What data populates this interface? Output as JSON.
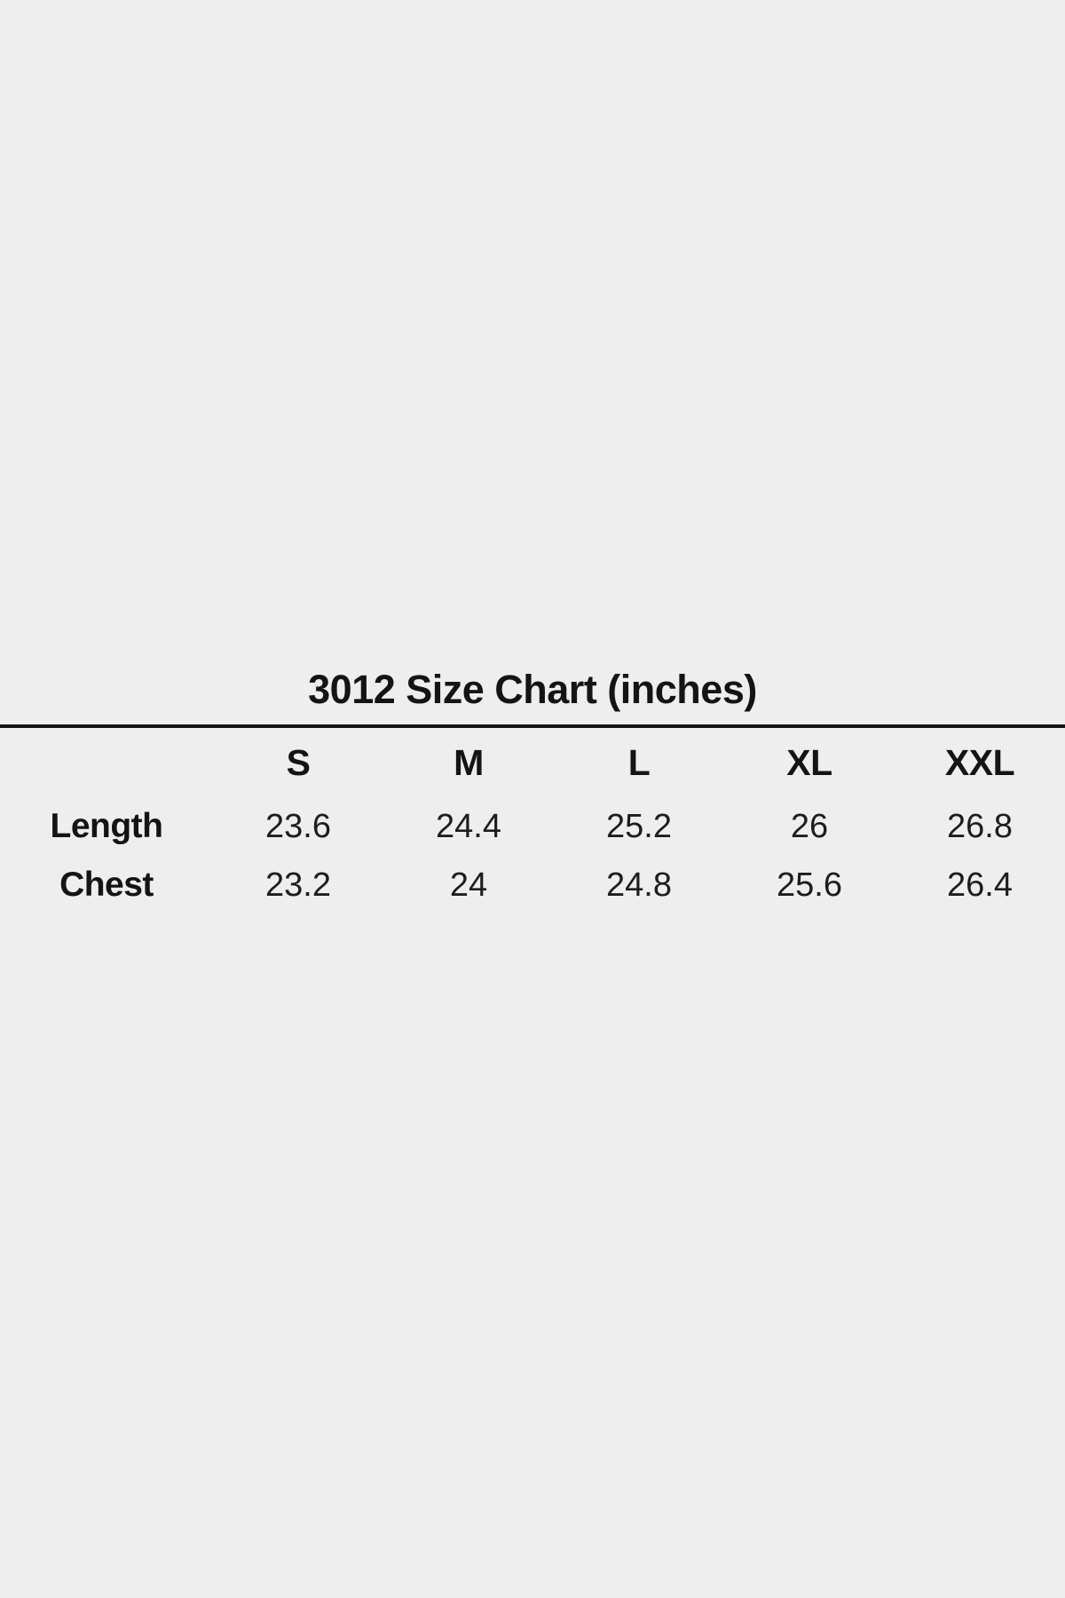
{
  "page": {
    "background_color": "#eeeeee",
    "text_color": "#141414",
    "rule_color": "#141414"
  },
  "chart_data": {
    "type": "table",
    "title": "3012 Size Chart (inches)",
    "units": "inches",
    "columns": [
      "S",
      "M",
      "L",
      "XL",
      "XXL"
    ],
    "rows": [
      {
        "label": "Length",
        "values": [
          "23.6",
          "24.4",
          "25.2",
          "26",
          "26.8"
        ]
      },
      {
        "label": "Chest",
        "values": [
          "23.2",
          "24",
          "24.8",
          "25.6",
          "26.4"
        ]
      }
    ]
  }
}
